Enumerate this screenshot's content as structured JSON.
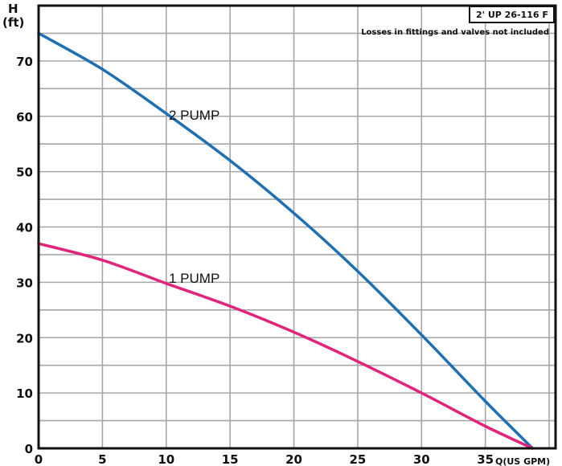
{
  "chart_data": {
    "type": "line",
    "model_label": "2' UP 26-116 F",
    "note": "Losses in fittings and valves not included",
    "ylabel_line1": "H",
    "ylabel_line2": "(ft)",
    "xlabel": "Q(US GPM)",
    "xlim": [
      0,
      40.5
    ],
    "ylim": [
      0,
      80
    ],
    "x_ticks": [
      0,
      5,
      10,
      15,
      20,
      25,
      30,
      35
    ],
    "y_ticks": [
      0,
      10,
      20,
      30,
      40,
      50,
      60,
      70
    ],
    "grid": true,
    "colors": {
      "frame": "#111111",
      "grid": "#a6a6a6"
    },
    "series": [
      {
        "name": "2 PUMP",
        "color": "#1f6fb3",
        "x": [
          0,
          5,
          10,
          15,
          20,
          25,
          30,
          35,
          38.7
        ],
        "y": [
          75,
          68.5,
          60.5,
          52,
          42.5,
          32,
          20.5,
          8.5,
          0
        ]
      },
      {
        "name": "1 PUMP",
        "color": "#e0257a",
        "x": [
          0,
          5,
          10,
          15,
          20,
          25,
          30,
          35,
          38.7
        ],
        "y": [
          37,
          34,
          29.8,
          25.7,
          21,
          15.7,
          10,
          4,
          0
        ]
      }
    ]
  }
}
